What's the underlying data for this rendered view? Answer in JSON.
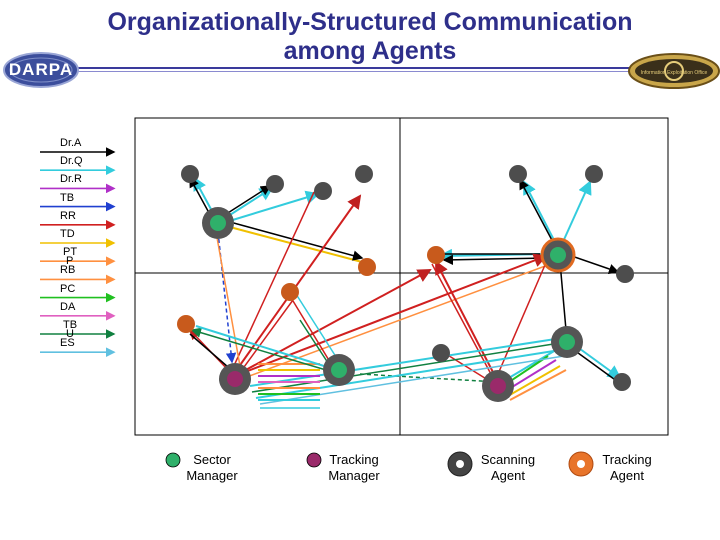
{
  "slide": {
    "title_line1": "Organizationally-Structured Communication",
    "title_line2": "among Agents",
    "logo_left": "DARPA",
    "logo_right": "Information Exploitation Office"
  },
  "legend": [
    {
      "label": "Dr.A",
      "color": "#000000"
    },
    {
      "label": "Dr.Q",
      "color": "#33ccdd"
    },
    {
      "label": "Dr.R",
      "color": "#b030c8"
    },
    {
      "label": "TB",
      "color": "#2040d0"
    },
    {
      "label": "RR",
      "color": "#d02020"
    },
    {
      "label": "TD",
      "color": "#f0c000"
    },
    {
      "label": "PT",
      "color": "#ff9040"
    },
    {
      "label": "RB",
      "color": "#ff9040"
    },
    {
      "label": "PC",
      "color": "#20c020"
    },
    {
      "label": "DA",
      "color": "#e060c0"
    },
    {
      "label": "TB",
      "color": "#108040"
    },
    {
      "label": "ES",
      "color": "#60c0e0"
    }
  ],
  "legend_overlaps": [
    {
      "label": "P",
      "after": "PT"
    },
    {
      "label": "U",
      "after": "TB"
    }
  ],
  "key": [
    {
      "label": "Sector Manager",
      "line1": "Sector",
      "line2": "Manager",
      "fill": "#2fb06a"
    },
    {
      "label": "Tracking Manager",
      "line1": "Tracking",
      "line2": "Manager",
      "fill": "#9a2a6a"
    },
    {
      "label": "Scanning Agent",
      "line1": "Scanning",
      "line2": "Agent",
      "fill": "#444444"
    },
    {
      "label": "Tracking Agent",
      "line1": "Tracking",
      "line2": "Agent",
      "fill": "#e8742a"
    }
  ]
}
